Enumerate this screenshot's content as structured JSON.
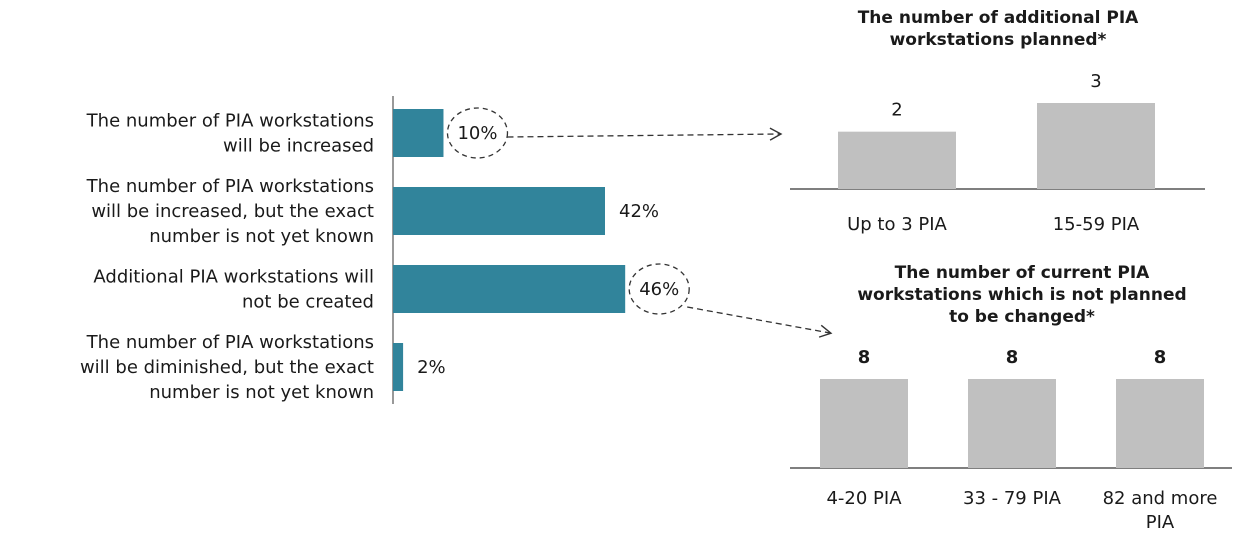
{
  "chart_data": [
    {
      "type": "bar",
      "orientation": "horizontal",
      "categories": [
        [
          "The number of PIA workstations",
          "will be increased"
        ],
        [
          "The number of PIA workstations",
          "will be increased, but the exact",
          "number is not yet known"
        ],
        [
          "Additional PIA workstations will",
          "not be created"
        ],
        [
          "The number of PIA workstations",
          "will be diminished, but the exact",
          "number is not yet known"
        ]
      ],
      "values": [
        10,
        42,
        46,
        2
      ],
      "value_labels": [
        "10%",
        "42%",
        "46%",
        "2%"
      ],
      "circled": [
        true,
        false,
        true,
        false
      ],
      "xlim": [
        0,
        50
      ],
      "color": "#31849b"
    },
    {
      "type": "bar",
      "title": [
        "The number of additional PIA",
        "workstations planned*"
      ],
      "categories": [
        "Up to 3 PIA",
        "15-59 PIA"
      ],
      "values": [
        2,
        3
      ],
      "value_labels": [
        "2",
        "3"
      ],
      "ylim": [
        0,
        3.5
      ],
      "color": "#c0c0c0"
    },
    {
      "type": "bar",
      "title": [
        "The number of current PIA",
        "workstations which is not planned",
        "to be changed*"
      ],
      "categories": [
        [
          "4-20 PIA"
        ],
        [
          "33 - 79 PIA"
        ],
        [
          "82 and more",
          "PIA"
        ]
      ],
      "values": [
        8,
        8,
        8
      ],
      "value_labels": [
        "8",
        "8",
        "8"
      ],
      "ylim": [
        0,
        8
      ],
      "color": "#c0c0c0"
    }
  ]
}
